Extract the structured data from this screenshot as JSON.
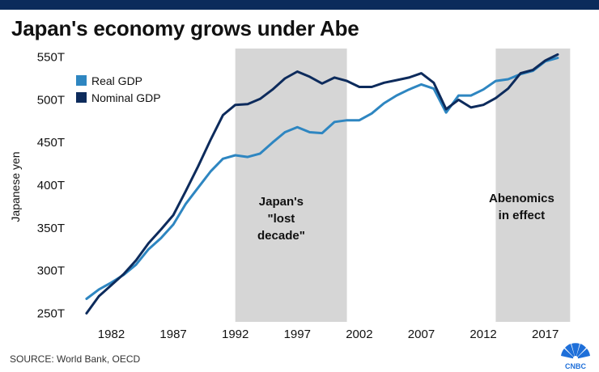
{
  "header": {
    "title": "Japan's economy grows under Abe",
    "accent_color": "#0b2b5b"
  },
  "footer": {
    "source": "SOURCE: World Bank, OECD",
    "logo_icon": "cnbc-peacock-logo",
    "logo_text": "CNBC"
  },
  "annotations": {
    "lost_decade": [
      "Japan's",
      "\"lost",
      "decade\""
    ],
    "abenomics": [
      "Abenomics",
      "in effect"
    ]
  },
  "chart_data": {
    "type": "line",
    "title": "Japan's economy grows under Abe",
    "xlabel": "",
    "ylabel": "Japanese yen",
    "ylim": [
      240,
      560
    ],
    "xlim": [
      1978.9,
      2019.5
    ],
    "yticks": [
      250,
      300,
      350,
      400,
      450,
      500,
      550
    ],
    "yticklabels": [
      "250T",
      "300T",
      "350T",
      "400T",
      "450T",
      "500T",
      "550T"
    ],
    "xticks": [
      1982,
      1987,
      1992,
      1997,
      2002,
      2007,
      2012,
      2017
    ],
    "xticklabels": [
      "1982",
      "1987",
      "1992",
      "1997",
      "2002",
      "2007",
      "2012",
      "2017"
    ],
    "grid": false,
    "legend_position": "top-left",
    "shaded_periods": [
      {
        "start": 1992,
        "end": 2001,
        "label": "Japan's \"lost decade\""
      },
      {
        "start": 2013,
        "end": 2019,
        "label": "Abenomics in effect"
      }
    ],
    "x": [
      1980,
      1981,
      1982,
      1983,
      1984,
      1985,
      1986,
      1987,
      1988,
      1989,
      1990,
      1991,
      1992,
      1993,
      1994,
      1995,
      1996,
      1997,
      1998,
      1999,
      2000,
      2001,
      2002,
      2003,
      2004,
      2005,
      2006,
      2007,
      2008,
      2009,
      2010,
      2011,
      2012,
      2013,
      2014,
      2015,
      2016,
      2017,
      2018
    ],
    "series": [
      {
        "name": "Real GDP",
        "color": "#2e86c1",
        "values": [
          267,
          278,
          286,
          295,
          307,
          325,
          338,
          354,
          378,
          397,
          416,
          431,
          435,
          433,
          437,
          450,
          462,
          468,
          462,
          461,
          474,
          476,
          476,
          484,
          496,
          505,
          512,
          518,
          513,
          485,
          505,
          505,
          512,
          522,
          524,
          530,
          534,
          545,
          549
        ]
      },
      {
        "name": "Nominal GDP",
        "color": "#0d2b5c",
        "values": [
          250,
          270,
          283,
          296,
          312,
          332,
          348,
          365,
          393,
          422,
          453,
          482,
          494,
          495,
          501,
          512,
          525,
          533,
          527,
          519,
          526,
          522,
          515,
          515,
          520,
          523,
          526,
          531,
          520,
          489,
          500,
          491,
          494,
          502,
          513,
          531,
          535,
          546,
          553
        ]
      }
    ]
  }
}
